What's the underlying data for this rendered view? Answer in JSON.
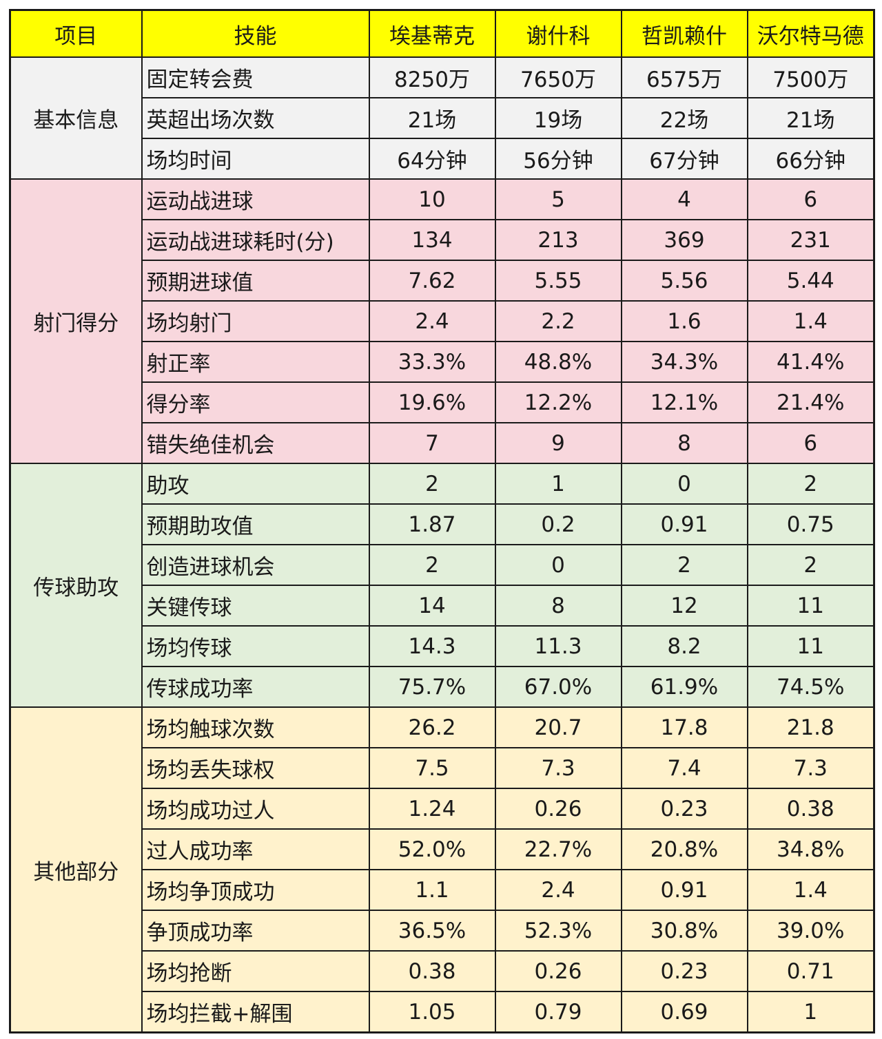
{
  "header": {
    "category": "项目",
    "skill": "技能",
    "players": [
      "埃基蒂克",
      "谢什科",
      "哲凯赖什",
      "沃尔特马德"
    ]
  },
  "colors": {
    "header": "#ffff00",
    "basic": "#f2f2f2",
    "shooting": "#f8d7dd",
    "passing": "#e2efda",
    "other": "#fff2cc"
  },
  "groups": [
    {
      "name": "基本信息",
      "rows": [
        {
          "skill": "固定转会费",
          "values": [
            "8250万",
            "7650万",
            "6575万",
            "7500万"
          ]
        },
        {
          "skill": "英超出场次数",
          "values": [
            "21场",
            "19场",
            "22场",
            "21场"
          ]
        },
        {
          "skill": "场均时间",
          "values": [
            "64分钟",
            "56分钟",
            "67分钟",
            "66分钟"
          ]
        }
      ]
    },
    {
      "name": "射门得分",
      "rows": [
        {
          "skill": "运动战进球",
          "values": [
            "10",
            "5",
            "4",
            "6"
          ]
        },
        {
          "skill": "运动战进球耗时(分)",
          "values": [
            "134",
            "213",
            "369",
            "231"
          ]
        },
        {
          "skill": "预期进球值",
          "values": [
            "7.62",
            "5.55",
            "5.56",
            "5.44"
          ]
        },
        {
          "skill": "场均射门",
          "values": [
            "2.4",
            "2.2",
            "1.6",
            "1.4"
          ]
        },
        {
          "skill": "射正率",
          "values": [
            "33.3%",
            "48.8%",
            "34.3%",
            "41.4%"
          ]
        },
        {
          "skill": "得分率",
          "values": [
            "19.6%",
            "12.2%",
            "12.1%",
            "21.4%"
          ]
        },
        {
          "skill": "错失绝佳机会",
          "values": [
            "7",
            "9",
            "8",
            "6"
          ]
        }
      ]
    },
    {
      "name": "传球助攻",
      "rows": [
        {
          "skill": "助攻",
          "values": [
            "2",
            "1",
            "0",
            "2"
          ]
        },
        {
          "skill": "预期助攻值",
          "values": [
            "1.87",
            "0.2",
            "0.91",
            "0.75"
          ]
        },
        {
          "skill": "创造进球机会",
          "values": [
            "2",
            "0",
            "2",
            "2"
          ]
        },
        {
          "skill": "关键传球",
          "values": [
            "14",
            "8",
            "12",
            "11"
          ]
        },
        {
          "skill": "场均传球",
          "values": [
            "14.3",
            "11.3",
            "8.2",
            "11"
          ]
        },
        {
          "skill": "传球成功率",
          "values": [
            "75.7%",
            "67.0%",
            "61.9%",
            "74.5%"
          ]
        }
      ]
    },
    {
      "name": "其他部分",
      "rows": [
        {
          "skill": "场均触球次数",
          "values": [
            "26.2",
            "20.7",
            "17.8",
            "21.8"
          ]
        },
        {
          "skill": "场均丢失球权",
          "values": [
            "7.5",
            "7.3",
            "7.4",
            "7.3"
          ]
        },
        {
          "skill": "场均成功过人",
          "values": [
            "1.24",
            "0.26",
            "0.23",
            "0.38"
          ]
        },
        {
          "skill": "过人成功率",
          "values": [
            "52.0%",
            "22.7%",
            "20.8%",
            "34.8%"
          ]
        },
        {
          "skill": "场均争顶成功",
          "values": [
            "1.1",
            "2.4",
            "0.91",
            "1.4"
          ]
        },
        {
          "skill": "争顶成功率",
          "values": [
            "36.5%",
            "52.3%",
            "30.8%",
            "39.0%"
          ]
        },
        {
          "skill": "场均抢断",
          "values": [
            "0.38",
            "0.26",
            "0.23",
            "0.71"
          ]
        },
        {
          "skill": "场均拦截+解围",
          "values": [
            "1.05",
            "0.79",
            "0.69",
            "1"
          ]
        }
      ]
    }
  ]
}
